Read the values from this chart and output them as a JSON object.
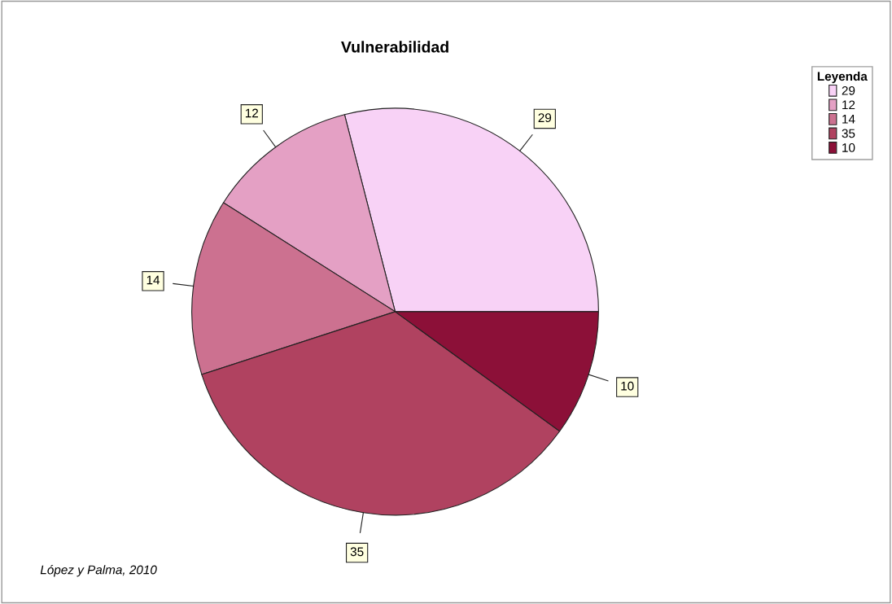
{
  "chart_data": {
    "type": "pie",
    "title": "Vulnerabilidad",
    "legend_title": "Leyenda",
    "legend": "top right",
    "data_labels": true,
    "categories": [
      "29",
      "12",
      "14",
      "35",
      "10"
    ],
    "values": [
      29,
      12,
      14,
      35,
      10
    ],
    "colors": [
      "#f8d2f6",
      "#e4a0c4",
      "#cc7190",
      "#b04260",
      "#8c1038"
    ],
    "annotations": [
      "López y Palma, 2010"
    ]
  }
}
